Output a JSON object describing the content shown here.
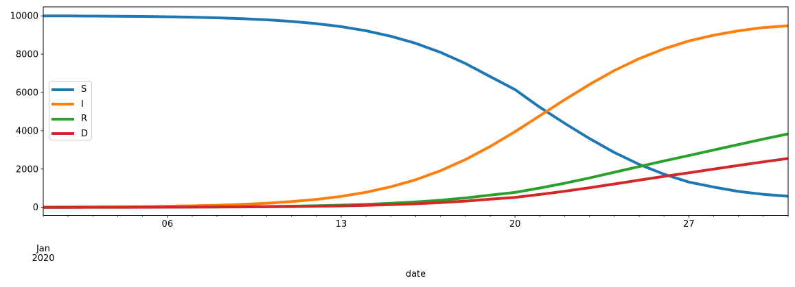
{
  "figure": {
    "background": "#ffffff",
    "offset_label_lines": [
      "Jan",
      "2020"
    ]
  },
  "chart_data": {
    "type": "line",
    "title": "",
    "xlabel": "date",
    "ylabel": "",
    "grid": false,
    "x_days_jan_2020": [
      1,
      2,
      3,
      4,
      5,
      6,
      7,
      8,
      9,
      10,
      11,
      12,
      13,
      14,
      15,
      16,
      17,
      18,
      19,
      20,
      21,
      22,
      23,
      24,
      25,
      26,
      27,
      28,
      29,
      30,
      31
    ],
    "series": [
      {
        "name": "S",
        "color": "#1f77b4",
        "values": [
          10000,
          9996,
          9990,
          9982,
          9970,
          9954,
          9931,
          9900,
          9856,
          9795,
          9711,
          9594,
          9436,
          9222,
          8938,
          8567,
          8095,
          7515,
          6830,
          6150,
          5228,
          4390,
          3591,
          2867,
          2244,
          1730,
          1320,
          1060,
          830,
          680,
          580
        ]
      },
      {
        "name": "I",
        "color": "#ff7f0e",
        "values": [
          10,
          14,
          20,
          28,
          40,
          56,
          79,
          110,
          154,
          215,
          299,
          416,
          574,
          788,
          1072,
          1443,
          1915,
          2495,
          3180,
          3953,
          4782,
          5620,
          6419,
          7143,
          7766,
          8280,
          8690,
          8990,
          9220,
          9390,
          9480
        ]
      },
      {
        "name": "R",
        "color": "#2ca02c",
        "values": [
          0,
          1,
          3,
          5,
          7,
          11,
          16,
          22,
          31,
          44,
          61,
          84,
          114,
          155,
          210,
          281,
          373,
          491,
          636,
          780,
          1008,
          1260,
          1536,
          1830,
          2130,
          2424,
          2706,
          2994,
          3282,
          3564,
          3834
        ]
      },
      {
        "name": "D",
        "color": "#d62728",
        "values": [
          0,
          1,
          2,
          3,
          5,
          7,
          10,
          15,
          21,
          29,
          41,
          56,
          76,
          104,
          140,
          187,
          249,
          327,
          424,
          520,
          672,
          840,
          1024,
          1220,
          1420,
          1616,
          1804,
          1996,
          2188,
          2376,
          2556
        ]
      }
    ],
    "line_width": 4,
    "y_ticks": [
      0,
      2000,
      4000,
      6000,
      8000,
      10000
    ],
    "y_tick_labels": [
      "0",
      "2000",
      "4000",
      "6000",
      "8000",
      "10000"
    ],
    "x_major_ticks": [
      {
        "day": 6,
        "label": "06"
      },
      {
        "day": 13,
        "label": "13"
      },
      {
        "day": 20,
        "label": "20"
      },
      {
        "day": 27,
        "label": "27"
      }
    ],
    "x_minor_ticks": "every day Jan 1 - Jan 31",
    "x_offset_label": "Jan 2020",
    "xlim_days": [
      1,
      31
    ],
    "ylim": [
      -420,
      10470
    ],
    "legend": {
      "position": "center-left",
      "entries": [
        "S",
        "I",
        "R",
        "D"
      ]
    }
  }
}
